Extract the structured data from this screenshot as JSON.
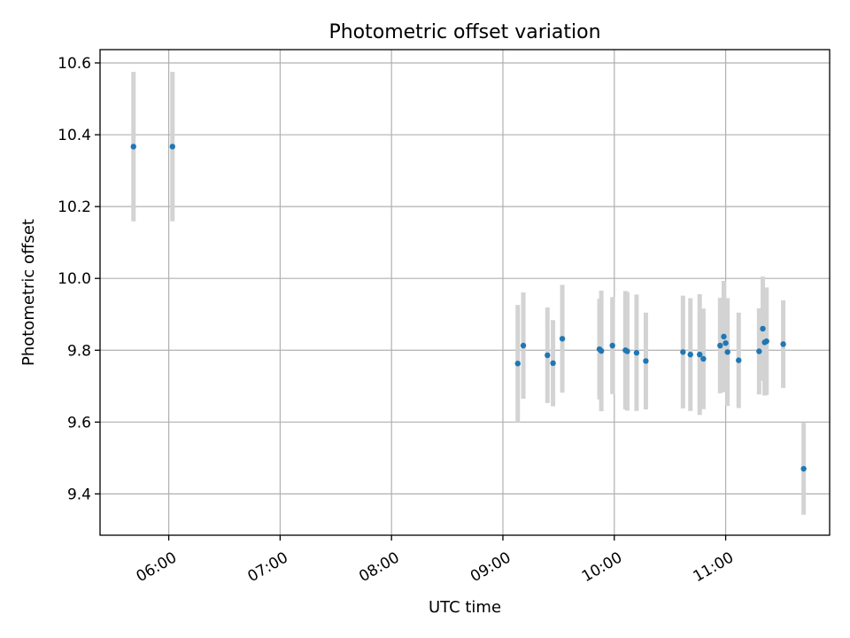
{
  "chart_data": {
    "type": "scatter",
    "title": "Photometric offset variation",
    "xlabel": "UTC time",
    "ylabel": "Photometric offset",
    "grid": true,
    "xlim": [
      "05:23",
      "11:56"
    ],
    "ylim": [
      9.285,
      10.637
    ],
    "x_ticks": [
      "06:00",
      "07:00",
      "08:00",
      "09:00",
      "10:00",
      "11:00"
    ],
    "y_ticks": [
      9.4,
      9.6,
      9.8,
      10.0,
      10.2,
      10.4,
      10.6
    ],
    "y_tick_labels": [
      "9.4",
      "9.6",
      "9.8",
      "10.0",
      "10.2",
      "10.4",
      "10.6"
    ],
    "colors": {
      "point": "#1f77b4",
      "errorbar": "#d3d3d3"
    },
    "series": [
      {
        "points": [
          {
            "x": "05:41",
            "y": 10.367,
            "yerr": 0.208
          },
          {
            "x": "06:02",
            "y": 10.367,
            "yerr": 0.208
          },
          {
            "x": "09:08",
            "y": 9.763,
            "yerr": 0.163
          },
          {
            "x": "09:11",
            "y": 9.813,
            "yerr": 0.148
          },
          {
            "x": "09:24",
            "y": 9.786,
            "yerr": 0.133
          },
          {
            "x": "09:27",
            "y": 9.764,
            "yerr": 0.12
          },
          {
            "x": "09:32",
            "y": 9.832,
            "yerr": 0.15
          },
          {
            "x": "09:52",
            "y": 9.803,
            "yerr": 0.14
          },
          {
            "x": "09:53",
            "y": 9.798,
            "yerr": 0.168
          },
          {
            "x": "09:59",
            "y": 9.813,
            "yerr": 0.135
          },
          {
            "x": "10:06",
            "y": 9.8,
            "yerr": 0.165
          },
          {
            "x": "10:07",
            "y": 9.797,
            "yerr": 0.165
          },
          {
            "x": "10:12",
            "y": 9.793,
            "yerr": 0.162
          },
          {
            "x": "10:17",
            "y": 9.77,
            "yerr": 0.135
          },
          {
            "x": "10:37",
            "y": 9.795,
            "yerr": 0.157
          },
          {
            "x": "10:41",
            "y": 9.788,
            "yerr": 0.157
          },
          {
            "x": "10:46",
            "y": 9.788,
            "yerr": 0.168
          },
          {
            "x": "10:48",
            "y": 9.776,
            "yerr": 0.14
          },
          {
            "x": "10:57",
            "y": 9.813,
            "yerr": 0.133
          },
          {
            "x": "10:59",
            "y": 9.838,
            "yerr": 0.155
          },
          {
            "x": "11:00",
            "y": 9.82,
            "yerr": 0.115
          },
          {
            "x": "11:01",
            "y": 9.795,
            "yerr": 0.15
          },
          {
            "x": "11:07",
            "y": 9.772,
            "yerr": 0.133
          },
          {
            "x": "11:18",
            "y": 9.797,
            "yerr": 0.12
          },
          {
            "x": "11:20",
            "y": 9.86,
            "yerr": 0.145
          },
          {
            "x": "11:21",
            "y": 9.822,
            "yerr": 0.148
          },
          {
            "x": "11:22",
            "y": 9.825,
            "yerr": 0.15
          },
          {
            "x": "11:31",
            "y": 9.817,
            "yerr": 0.122
          },
          {
            "x": "11:42",
            "y": 9.47,
            "yerr": 0.128
          }
        ]
      }
    ]
  }
}
